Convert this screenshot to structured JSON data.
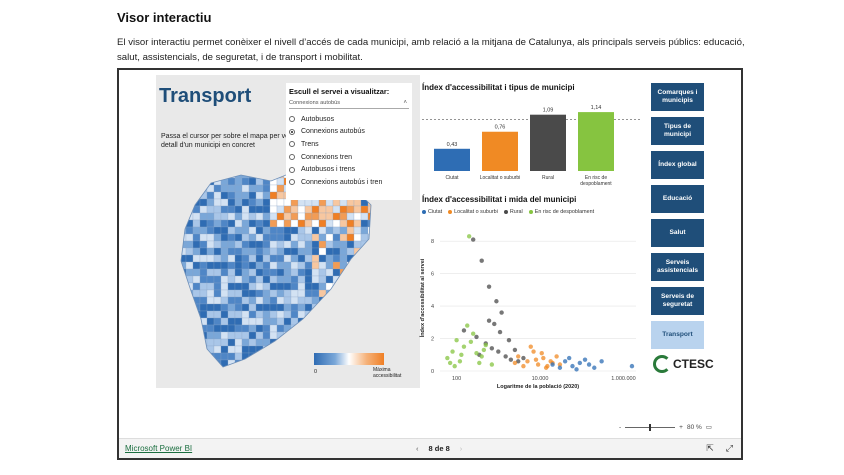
{
  "page": {
    "title": "Visor interactiu",
    "description": "El visor interactiu permet conèixer el nivell d’accés de cada municipi, amb relació a la mitjana de Catalunya, als principals serveis públics: educació, salut, assistencials, de seguretat, i de transport i mobilitat."
  },
  "report": {
    "title": "Transport",
    "map_hint": "Passa el cursor per sobre el mapa per veure el detall d'un municipi en concret",
    "legend_min": "0",
    "legend_max": "Màxima accessibilitat",
    "slicer": {
      "title": "Escull el servei a visualitzar:",
      "selected": "Connexions autobús",
      "options": [
        {
          "label": "Autobusos",
          "checked": false
        },
        {
          "label": "Connexions autobús",
          "checked": true
        },
        {
          "label": "Trens",
          "checked": false
        },
        {
          "label": "Connexions tren",
          "checked": false
        },
        {
          "label": "Autobusos i trens",
          "checked": false
        },
        {
          "label": "Connexions autobús i tren",
          "checked": false
        }
      ]
    },
    "bar_chart_title": "Índex d'accessibilitat i tipus de municipi",
    "scatter_title": "Índex d'accessibilitat i mida del municipi",
    "scatter_ylabel": "Índex d'accessibilitat al servei",
    "scatter_xlabel": "Logaritme de la població (2020)",
    "nav": [
      {
        "label": "Comarques i municipis",
        "active": false
      },
      {
        "label": "Tipus de municipi",
        "active": false
      },
      {
        "label": "Índex global",
        "active": false
      },
      {
        "label": "Educació",
        "active": false
      },
      {
        "label": "Salut",
        "active": false
      },
      {
        "label": "Serveis assistencials",
        "active": false
      },
      {
        "label": "Serveis de seguretat",
        "active": false
      },
      {
        "label": "Transport",
        "active": true
      }
    ],
    "logo": "CTESC"
  },
  "viewer": {
    "zoom_minus": "-",
    "zoom_plus": "+",
    "zoom_level": "80 %",
    "powerbi_link": "Microsoft Power BI",
    "page_indicator": "8 de 8",
    "prev_icon": "‹",
    "next_icon": "›"
  },
  "colors": {
    "ciutat": "#2e6db4",
    "localitat": "#f08a24",
    "rural": "#4a4a4a",
    "risc": "#86c440",
    "nav_bg": "#1f4e79",
    "nav_active_bg": "#b9d3ee"
  },
  "chart_data": [
    {
      "type": "bar",
      "title": "Índex d'accessibilitat i tipus de municipi",
      "categories": [
        "Ciutat",
        "Localitat o suburbi",
        "Rural",
        "En risc de despoblament"
      ],
      "values": [
        0.43,
        0.76,
        1.09,
        1.14
      ],
      "value_labels": [
        "0,43",
        "0,76",
        "1,09",
        "1,14"
      ],
      "reference_line": 1.0,
      "ylim": [
        0,
        1.2
      ]
    },
    {
      "type": "scatter",
      "title": "Índex d'accessibilitat i mida del municipi",
      "xlabel": "Logaritme de la població (2020)",
      "ylabel": "Índex d'accessibilitat al servei",
      "x_scale": "log",
      "xlim": [
        40,
        2000000
      ],
      "ylim": [
        0,
        9
      ],
      "x_ticks": [
        "100",
        "10.000",
        "1.000.000"
      ],
      "y_ticks": [
        "0",
        "2",
        "4",
        "6",
        "8"
      ],
      "legend": [
        "Ciutat",
        "Localitat o suburbi",
        "Rural",
        "En risc de despoblament"
      ],
      "series": [
        {
          "name": "Ciutat",
          "points": [
            [
              20000,
              0.4
            ],
            [
              40000,
              0.6
            ],
            [
              60000,
              0.3
            ],
            [
              90000,
              0.5
            ],
            [
              150000,
              0.4
            ],
            [
              200000,
              0.2
            ],
            [
              300000,
              0.6
            ],
            [
              1600000,
              0.3
            ],
            [
              30000,
              0.2
            ],
            [
              50000,
              0.8
            ],
            [
              75000,
              0.1
            ],
            [
              120000,
              0.7
            ]
          ]
        },
        {
          "name": "Localitat o suburbi",
          "points": [
            [
              3000,
              0.9
            ],
            [
              5000,
              0.6
            ],
            [
              7000,
              1.2
            ],
            [
              9000,
              0.4
            ],
            [
              12000,
              0.8
            ],
            [
              15000,
              0.3
            ],
            [
              20000,
              0.5
            ],
            [
              25000,
              0.9
            ],
            [
              4000,
              0.3
            ],
            [
              6000,
              1.5
            ],
            [
              8000,
              0.7
            ],
            [
              11000,
              1.1
            ],
            [
              14000,
              0.2
            ],
            [
              18000,
              0.6
            ],
            [
              2500,
              0.5
            ],
            [
              30000,
              0.4
            ]
          ]
        },
        {
          "name": "Rural",
          "points": [
            [
              250,
              8.1
            ],
            [
              400,
              6.8
            ],
            [
              600,
              5.2
            ],
            [
              900,
              4.3
            ],
            [
              1200,
              3.6
            ],
            [
              150,
              2.5
            ],
            [
              300,
              2.1
            ],
            [
              500,
              1.7
            ],
            [
              700,
              1.4
            ],
            [
              1000,
              1.2
            ],
            [
              1500,
              0.9
            ],
            [
              2000,
              0.7
            ],
            [
              3000,
              0.6
            ],
            [
              800,
              2.9
            ],
            [
              1800,
              1.9
            ],
            [
              2500,
              1.3
            ],
            [
              4000,
              0.8
            ],
            [
              600,
              3.1
            ],
            [
              1100,
              2.4
            ],
            [
              350,
              1.0
            ]
          ]
        },
        {
          "name": "En risc de despoblament",
          "points": [
            [
              200,
              8.3
            ],
            [
              100,
              1.9
            ],
            [
              150,
              1.5
            ],
            [
              60,
              0.8
            ],
            [
              80,
              1.2
            ],
            [
              120,
              0.6
            ],
            [
              250,
              2.3
            ],
            [
              300,
              1.1
            ],
            [
              400,
              0.9
            ],
            [
              500,
              1.6
            ],
            [
              700,
              0.4
            ],
            [
              180,
              2.8
            ],
            [
              90,
              0.3
            ],
            [
              220,
              1.8
            ],
            [
              350,
              0.5
            ],
            [
              130,
              1.0
            ],
            [
              450,
              1.3
            ],
            [
              70,
              0.5
            ]
          ]
        }
      ]
    }
  ]
}
